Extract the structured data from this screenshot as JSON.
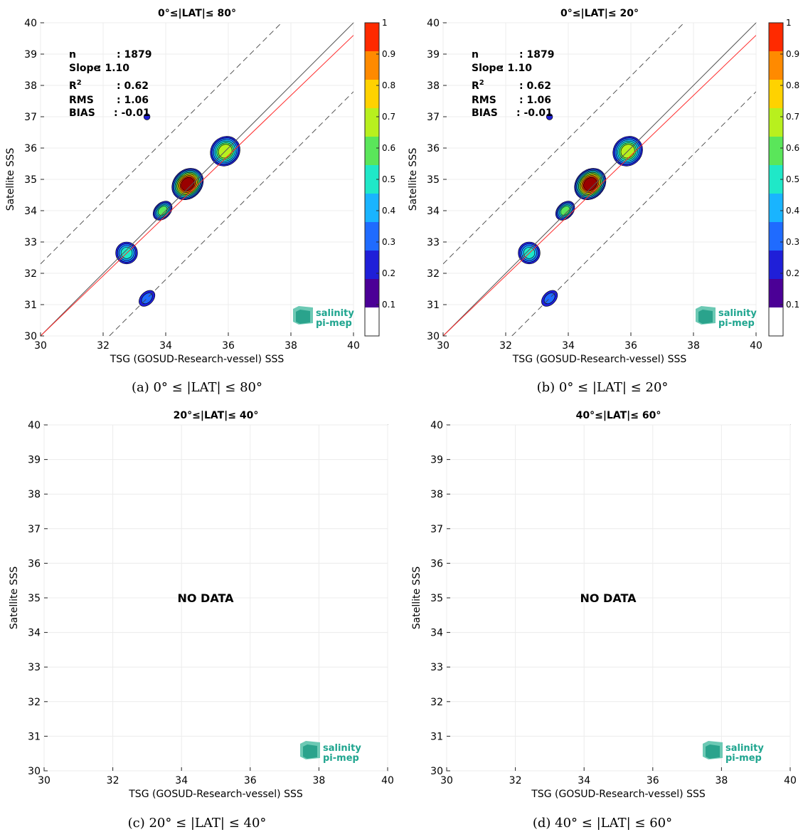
{
  "chart_data": [
    {
      "type": "contour",
      "title": "0°≤|LAT|≤ 80°",
      "caption": "(a) 0° ≤ |LAT| ≤ 80°",
      "xlabel": "TSG (GOSUD-Research-vessel) SSS",
      "ylabel": "Satellite SSS",
      "xlim": [
        30,
        40
      ],
      "ylim": [
        30,
        40
      ],
      "xticks": [
        30,
        32,
        34,
        36,
        38,
        40
      ],
      "yticks": [
        30,
        31,
        32,
        33,
        34,
        35,
        36,
        37,
        38,
        39,
        40
      ],
      "stats": [
        {
          "label": "n",
          "value": ": 1879"
        },
        {
          "label": "Slope",
          "value": ": 1.10"
        },
        {
          "label": "R",
          "sup": "2",
          "value": ": 0.62"
        },
        {
          "label": "RMS",
          "value": ": 1.06"
        },
        {
          "label": "BIAS",
          "value": ": -0.01"
        }
      ],
      "regression": {
        "slope": 1.1,
        "intercept": -3.8
      },
      "colorbar": {
        "min": 0,
        "max": 1,
        "ticks": [
          "0.1",
          "0.2",
          "0.3",
          "0.4",
          "0.5",
          "0.6",
          "0.7",
          "0.8",
          "0.9",
          "1"
        ]
      },
      "clusters": [
        {
          "x": 34.7,
          "y": 34.85,
          "sx": 0.55,
          "sy": 0.45,
          "peak": 1.0
        },
        {
          "x": 35.9,
          "y": 35.9,
          "sx": 0.5,
          "sy": 0.45,
          "peak": 0.55
        },
        {
          "x": 33.9,
          "y": 34.0,
          "sx": 0.35,
          "sy": 0.25,
          "peak": 0.5
        },
        {
          "x": 32.75,
          "y": 32.65,
          "sx": 0.35,
          "sy": 0.35,
          "peak": 0.4
        },
        {
          "x": 33.4,
          "y": 31.2,
          "sx": 0.3,
          "sy": 0.2,
          "peak": 0.2
        },
        {
          "x": 33.4,
          "y": 37.0,
          "sx": 0.1,
          "sy": 0.1,
          "peak": 0.1
        }
      ]
    },
    {
      "type": "contour",
      "title": "0°≤|LAT|≤ 20°",
      "caption": "(b) 0° ≤ |LAT| ≤ 20°",
      "xlabel": "TSG (GOSUD-Research-vessel) SSS",
      "ylabel": "Satellite SSS",
      "xlim": [
        30,
        40
      ],
      "ylim": [
        30,
        40
      ],
      "xticks": [
        30,
        32,
        34,
        36,
        38,
        40
      ],
      "yticks": [
        30,
        31,
        32,
        33,
        34,
        35,
        36,
        37,
        38,
        39,
        40
      ],
      "stats": [
        {
          "label": "n",
          "value": ": 1879"
        },
        {
          "label": "Slope",
          "value": ": 1.10"
        },
        {
          "label": "R",
          "sup": "2",
          "value": ": 0.62"
        },
        {
          "label": "RMS",
          "value": ": 1.06"
        },
        {
          "label": "BIAS",
          "value": ": -0.01"
        }
      ],
      "regression": {
        "slope": 1.1,
        "intercept": -3.8
      },
      "colorbar": {
        "min": 0,
        "max": 1,
        "ticks": [
          "0.1",
          "0.2",
          "0.3",
          "0.4",
          "0.5",
          "0.6",
          "0.7",
          "0.8",
          "0.9",
          "1"
        ]
      },
      "clusters": [
        {
          "x": 34.7,
          "y": 34.85,
          "sx": 0.55,
          "sy": 0.45,
          "peak": 1.0
        },
        {
          "x": 35.9,
          "y": 35.9,
          "sx": 0.5,
          "sy": 0.45,
          "peak": 0.55
        },
        {
          "x": 33.9,
          "y": 34.0,
          "sx": 0.35,
          "sy": 0.25,
          "peak": 0.5
        },
        {
          "x": 32.75,
          "y": 32.65,
          "sx": 0.35,
          "sy": 0.35,
          "peak": 0.4
        },
        {
          "x": 33.4,
          "y": 31.2,
          "sx": 0.3,
          "sy": 0.2,
          "peak": 0.2
        },
        {
          "x": 33.4,
          "y": 37.0,
          "sx": 0.1,
          "sy": 0.1,
          "peak": 0.1
        }
      ]
    },
    {
      "type": "contour",
      "title": "20°≤|LAT|≤ 40°",
      "caption": "(c) 20° ≤ |LAT| ≤ 40°",
      "xlabel": "TSG (GOSUD-Research-vessel) SSS",
      "ylabel": "Satellite SSS",
      "xlim": [
        30,
        40
      ],
      "ylim": [
        30,
        40
      ],
      "xticks": [
        30,
        32,
        34,
        36,
        38,
        40
      ],
      "yticks": [
        30,
        31,
        32,
        33,
        34,
        35,
        36,
        37,
        38,
        39,
        40
      ],
      "nodata": "NO DATA"
    },
    {
      "type": "contour",
      "title": "40°≤|LAT|≤ 60°",
      "caption": "(d) 40° ≤ |LAT| ≤ 60°",
      "xlabel": "TSG (GOSUD-Research-vessel) SSS",
      "ylabel": "Satellite SSS",
      "xlim": [
        30,
        40
      ],
      "ylim": [
        30,
        40
      ],
      "xticks": [
        30,
        32,
        34,
        36,
        38,
        40
      ],
      "yticks": [
        30,
        31,
        32,
        33,
        34,
        35,
        36,
        37,
        38,
        39,
        40
      ],
      "nodata": "NO DATA"
    }
  ],
  "logo": {
    "line1": "salinity",
    "line2": "pi-mep"
  },
  "colors": {
    "regression": "#ff2a2a",
    "identity": "#555555",
    "dashed": "#444444",
    "jet": [
      "#ffffff",
      "#4b0096",
      "#1f1fd8",
      "#1f6bff",
      "#19b4ff",
      "#1fe8c8",
      "#5ae65a",
      "#b8f01e",
      "#ffd200",
      "#ff8a00",
      "#ff2a00",
      "#9a0000"
    ]
  }
}
